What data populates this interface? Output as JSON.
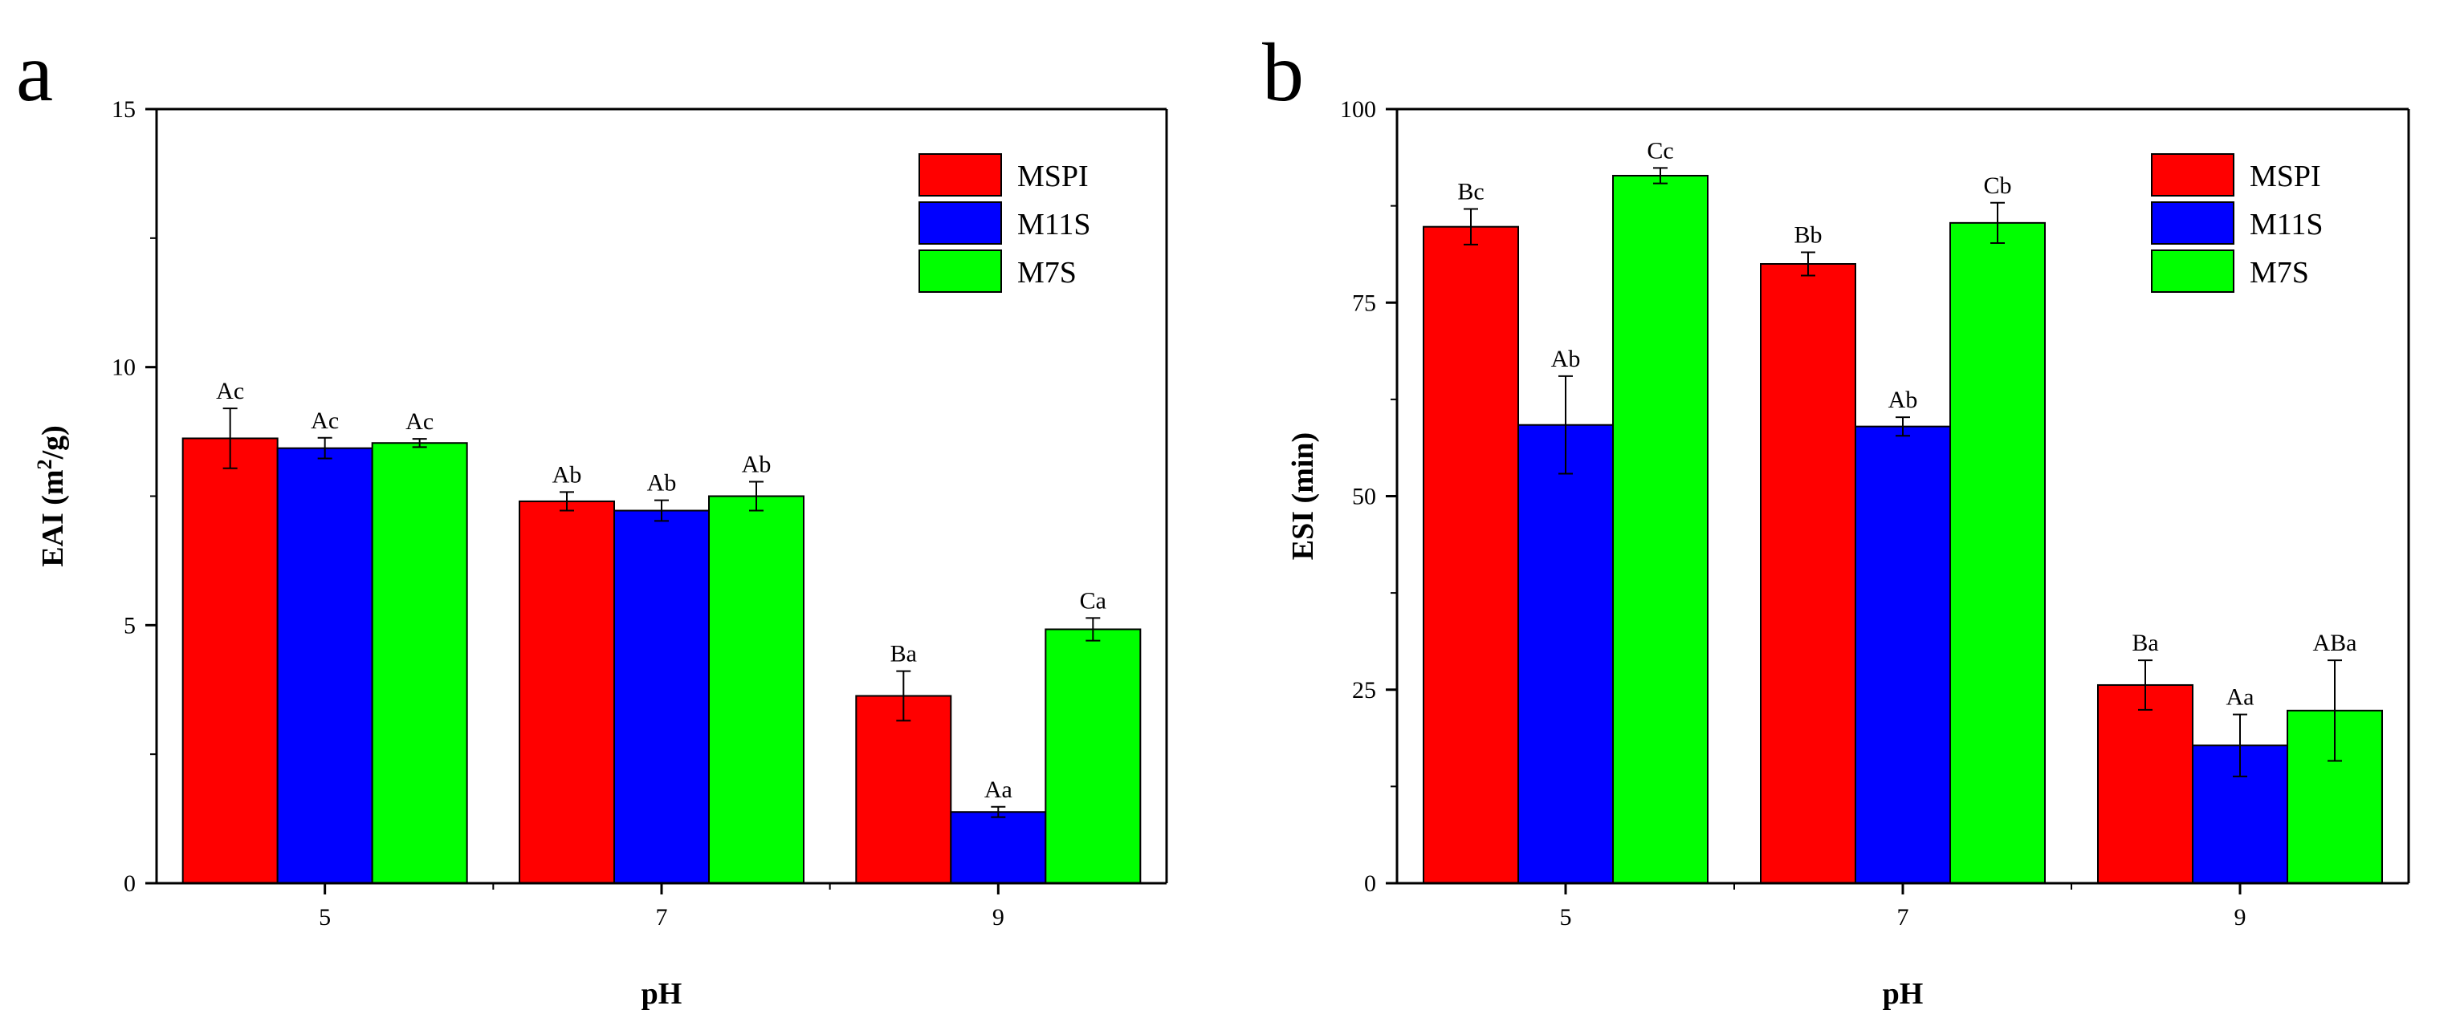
{
  "colors": {
    "MSPI": "#ff0000",
    "M11S": "#0000ff",
    "M7S": "#00ff00",
    "axis": "#000000"
  },
  "chart_data": [
    {
      "panel": "a",
      "type": "bar",
      "title": "",
      "xlabel": "pH",
      "ylabel": "EAI (m2/g)",
      "ylabel_parts": {
        "pre": "EAI (m",
        "sup": "2",
        "post": "/g)"
      },
      "categories": [
        "5",
        "7",
        "9"
      ],
      "ylim": [
        0,
        15
      ],
      "yticks": [
        0,
        5,
        10,
        15
      ],
      "legend_position": "top-right",
      "series": [
        {
          "name": "MSPI",
          "values": [
            8.62,
            7.4,
            3.63
          ],
          "errors": [
            0.58,
            0.18,
            0.48
          ],
          "labels": [
            "Ac",
            "Ab",
            "Ba"
          ]
        },
        {
          "name": "M11S",
          "values": [
            8.43,
            7.22,
            1.38
          ],
          "errors": [
            0.2,
            0.2,
            0.1
          ],
          "labels": [
            "Ac",
            "Ab",
            "Aa"
          ]
        },
        {
          "name": "M7S",
          "values": [
            8.53,
            7.5,
            4.92
          ],
          "errors": [
            0.08,
            0.28,
            0.22
          ],
          "labels": [
            "Ac",
            "Ab",
            "Ca"
          ]
        }
      ]
    },
    {
      "panel": "b",
      "type": "bar",
      "title": "",
      "xlabel": "pH",
      "ylabel": "ESI (min)",
      "categories": [
        "5",
        "7",
        "9"
      ],
      "ylim": [
        0,
        100
      ],
      "yticks": [
        0,
        25,
        50,
        75,
        100
      ],
      "legend_position": "top-right",
      "series": [
        {
          "name": "MSPI",
          "values": [
            84.8,
            80.0,
            25.6
          ],
          "errors": [
            2.3,
            1.5,
            3.2
          ],
          "labels": [
            "Bc",
            "Bb",
            "Ba"
          ]
        },
        {
          "name": "M11S",
          "values": [
            59.2,
            59.0,
            17.8
          ],
          "errors": [
            6.3,
            1.2,
            4.0
          ],
          "labels": [
            "Ab",
            "Ab",
            "Aa"
          ]
        },
        {
          "name": "M7S",
          "values": [
            91.4,
            85.3,
            22.3
          ],
          "errors": [
            1.0,
            2.6,
            6.5
          ],
          "labels": [
            "Cc",
            "Cb",
            "ABa"
          ]
        }
      ]
    }
  ]
}
